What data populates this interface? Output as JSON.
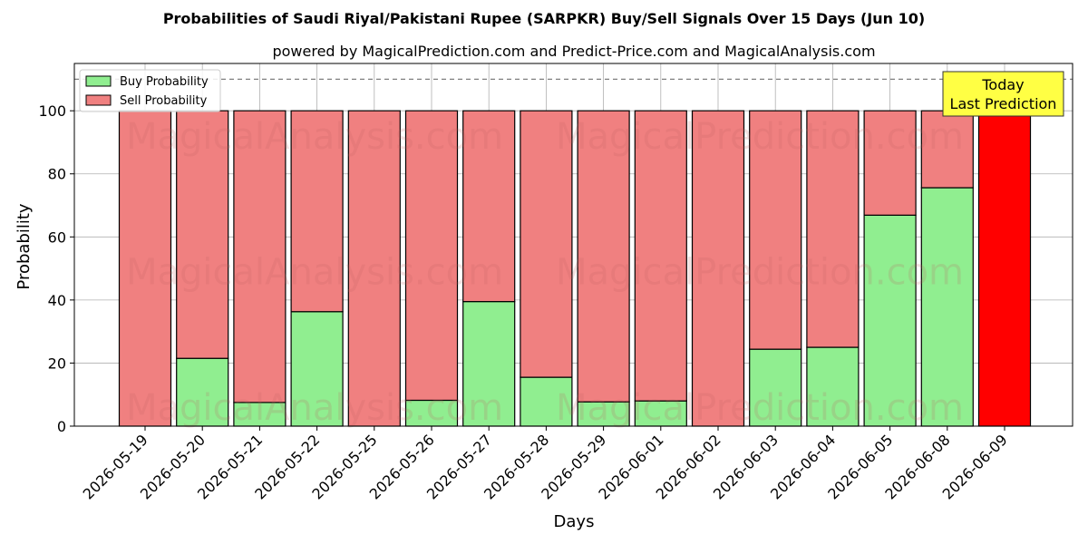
{
  "chart_data": {
    "type": "bar",
    "stacked": true,
    "title": "Probabilities of Saudi Riyal/Pakistani Rupee (SARPKR) Buy/Sell Signals Over 15 Days (Jun 10)",
    "subtitle": "powered by MagicalPrediction.com and Predict-Price.com and MagicalAnalysis.com",
    "xlabel": "Days",
    "ylabel": "Probability",
    "ylim": [
      0,
      115
    ],
    "yticks": [
      0,
      20,
      40,
      60,
      80,
      100
    ],
    "reference_line": 110,
    "grid": true,
    "legend_position": "top-left",
    "categories": [
      "2026-05-19",
      "2026-05-20",
      "2026-05-21",
      "2026-05-22",
      "2026-05-25",
      "2026-05-26",
      "2026-05-27",
      "2026-05-28",
      "2026-05-29",
      "2026-06-01",
      "2026-06-02",
      "2026-06-03",
      "2026-06-04",
      "2026-06-05",
      "2026-06-08",
      "2026-06-09"
    ],
    "series": [
      {
        "name": "Buy Probability",
        "color": "#90ee90",
        "values": [
          0,
          21.5,
          7.5,
          36.3,
          0,
          8.2,
          39.5,
          15.5,
          7.7,
          8.0,
          0,
          24.4,
          25.0,
          66.9,
          75.6,
          0
        ]
      },
      {
        "name": "Sell Probability",
        "color": "#f08080",
        "values": [
          100,
          78.5,
          92.5,
          63.7,
          100,
          91.8,
          60.5,
          84.5,
          92.3,
          92.0,
          100,
          75.6,
          75.0,
          33.1,
          24.4,
          100
        ]
      }
    ],
    "highlight": {
      "index": 15,
      "color": "#ff0000"
    },
    "annotation": {
      "lines": [
        "Today",
        "Last Prediction"
      ],
      "background": "#ffff44"
    },
    "watermarks": [
      "MagicalAnalysis.com",
      "MagicalPrediction.com"
    ]
  }
}
